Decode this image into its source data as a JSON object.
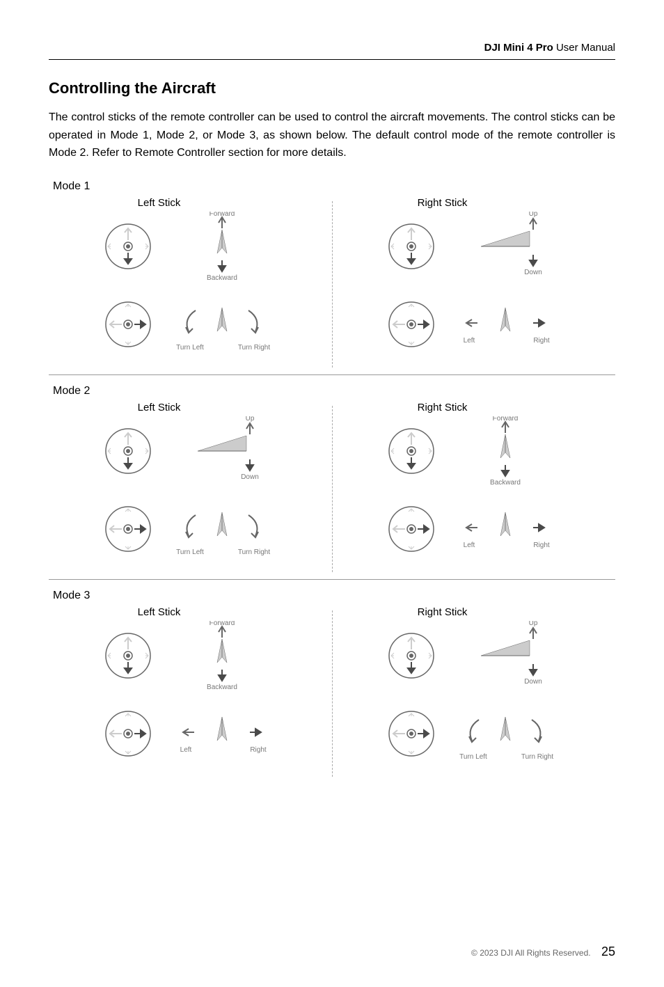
{
  "header": {
    "product": "DJI Mini 4 Pro",
    "suffix": " User Manual"
  },
  "title": "Controlling the Aircraft",
  "intro": "The control sticks of the remote controller can be used to control the aircraft movements. The control sticks can be operated in Mode 1, Mode 2, or Mode 3, as shown below. The default control mode of the remote controller is Mode 2. Refer to Remote Controller section for more details.",
  "colors": {
    "arrow_dark": "#4a4a4a",
    "arrow_light": "#cccccc",
    "outline": "#666666",
    "text_gray": "#777777"
  },
  "labels": {
    "left_stick": "Left Stick",
    "right_stick": "Right Stick",
    "forward": "Forward",
    "backward": "Backward",
    "up": "Up",
    "down": "Down",
    "left": "Left",
    "right": "Right",
    "turn_left": "Turn Left",
    "turn_right": "Turn Right"
  },
  "modes": [
    {
      "name": "Mode 1",
      "left_v": "forward_backward",
      "left_h": "turn",
      "right_v": "up_down",
      "right_h": "left_right"
    },
    {
      "name": "Mode 2",
      "left_v": "up_down",
      "left_h": "turn",
      "right_v": "forward_backward",
      "right_h": "left_right"
    },
    {
      "name": "Mode 3",
      "left_v": "forward_backward",
      "left_h": "left_right",
      "right_v": "up_down",
      "right_h": "turn"
    }
  ],
  "footer": {
    "copyright": "© 2023 DJI All Rights Reserved.",
    "page": "25"
  }
}
